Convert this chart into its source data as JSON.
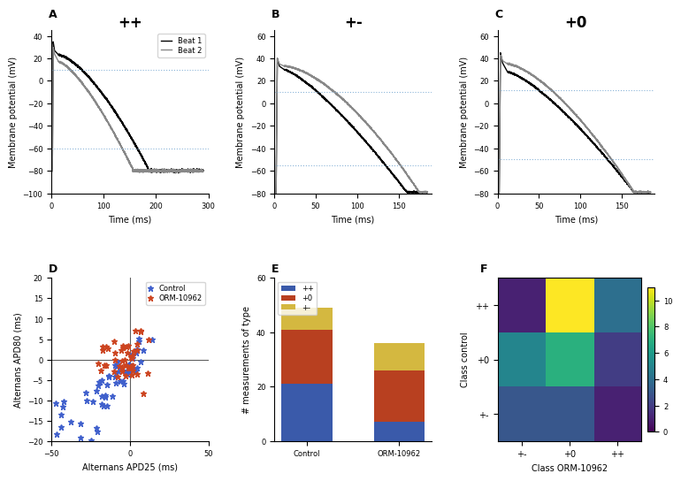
{
  "title_pp": "++",
  "title_pm": "+-",
  "title_p0": "+0",
  "ap_ylim_A": [
    -100,
    45
  ],
  "ap_ylim_BC": [
    -80,
    65
  ],
  "ap_A_xlim": [
    0,
    300
  ],
  "ap_B_xlim": [
    0,
    190
  ],
  "ap_C_xlim": [
    0,
    190
  ],
  "ap_ylabel": "Membrane potential (mV)",
  "ap_xlabel": "Time (ms)",
  "hline_A": [
    10,
    -60
  ],
  "hline_B": [
    10,
    -55
  ],
  "hline_C": [
    12,
    -50
  ],
  "scatter_xlim": [
    -50,
    50
  ],
  "scatter_ylim": [
    -20,
    20
  ],
  "scatter_xlabel": "Alternans APD25 (ms)",
  "scatter_ylabel": "Alternans APD80 (ms)",
  "bar_categories": [
    "Control",
    "ORM-10962"
  ],
  "bar_pp": [
    21,
    7
  ],
  "bar_p0": [
    20,
    19
  ],
  "bar_pm": [
    8,
    10
  ],
  "bar_color_pp": "#3a5aaa",
  "bar_color_p0": "#b84020",
  "bar_color_pm": "#d4b840",
  "bar_ylabel": "# measurements of type",
  "heatmap_data": [
    [
      1,
      11,
      4
    ],
    [
      5,
      7,
      2
    ],
    [
      3,
      3,
      1
    ]
  ],
  "heatmap_xticklabels": [
    "+-",
    "+0",
    "++"
  ],
  "heatmap_yticklabels": [
    "++",
    "+0",
    "+-"
  ],
  "heatmap_xlabel": "Class ORM-10962",
  "heatmap_ylabel": "Class control",
  "colorbar_ticks": [
    0,
    2,
    4,
    6,
    8,
    10
  ],
  "legend_beat1": "Beat 1",
  "legend_beat2": "Beat 2",
  "scatter_legend1": "Control",
  "scatter_legend2": "ORM-10962",
  "ctrl_color": "#4060cc",
  "orm_color": "#cc4420"
}
